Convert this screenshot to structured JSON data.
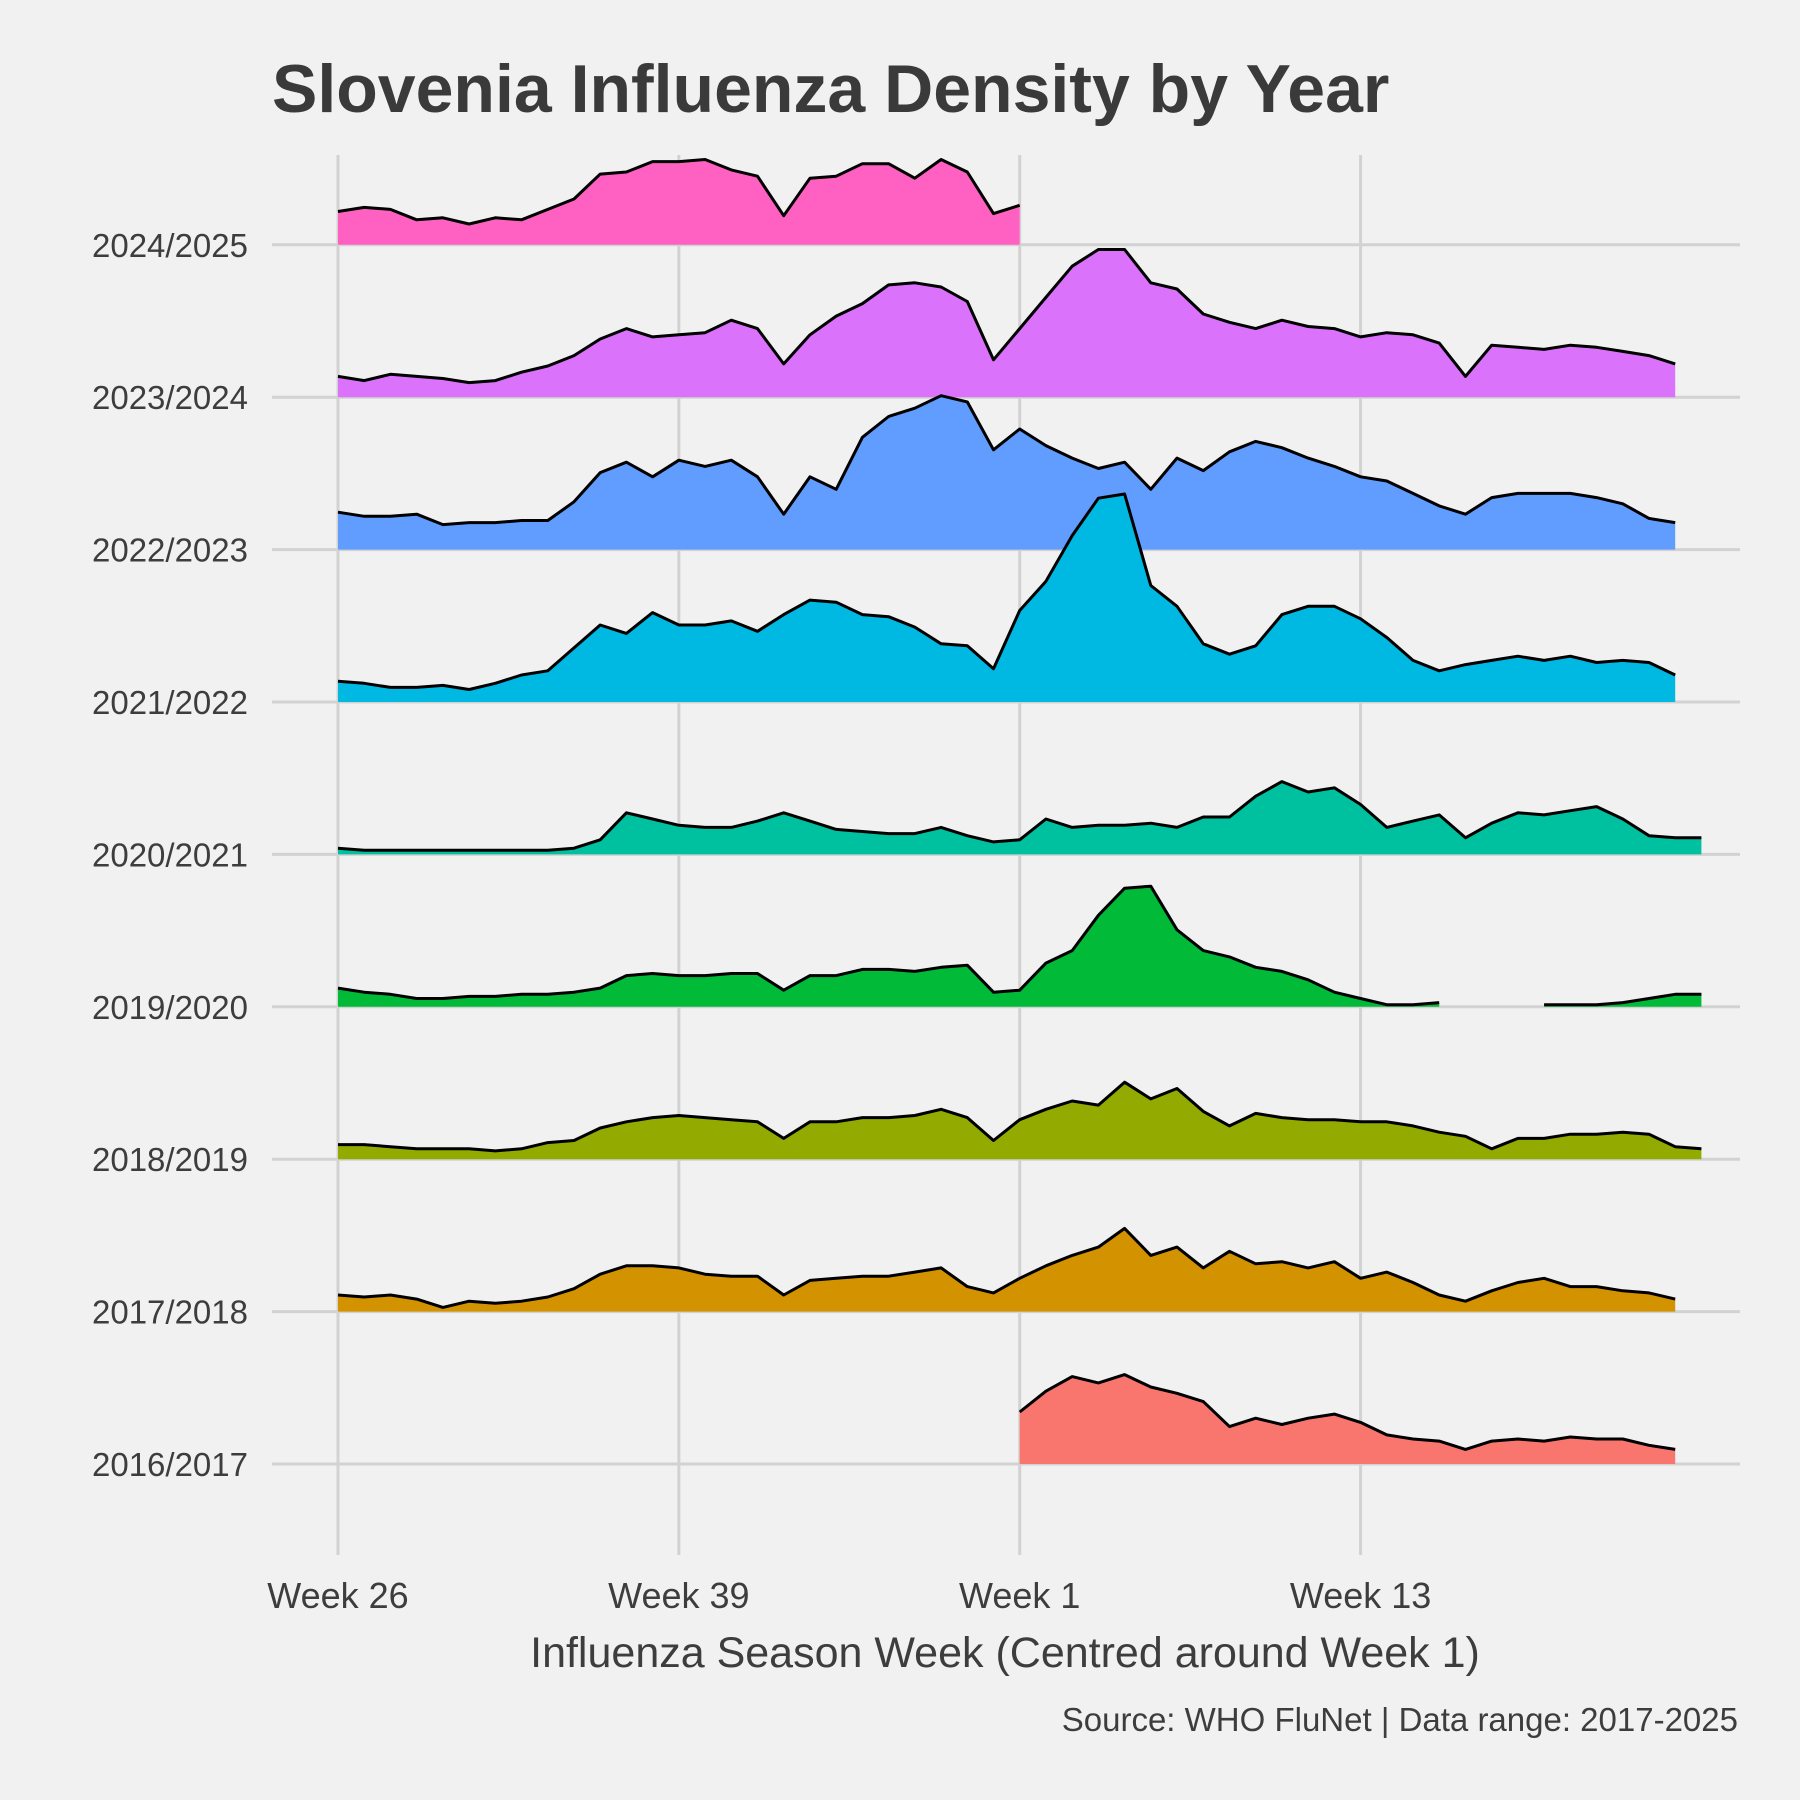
{
  "chart_data": {
    "type": "area",
    "title": "Slovenia Influenza Density by Year",
    "xlabel": "Influenza Season Week (Centred around Week 1)",
    "ylabel": "",
    "caption": "Source: WHO FluNet | Data range: 2017-2025",
    "x_tick_labels": [
      "Week 26",
      "Week 39",
      "Week 1",
      "Week 13"
    ],
    "x_tick_positions": [
      0,
      13,
      26,
      39
    ],
    "x_range": [
      0,
      51
    ],
    "grid": true,
    "legend": "none",
    "series": [
      {
        "name": "2016/2017",
        "color": "#f8766d",
        "values": [
          null,
          null,
          null,
          null,
          null,
          null,
          null,
          null,
          null,
          null,
          null,
          null,
          null,
          null,
          null,
          null,
          null,
          null,
          null,
          null,
          null,
          null,
          null,
          null,
          null,
          null,
          0.25,
          0.35,
          0.42,
          0.39,
          0.43,
          0.37,
          0.34,
          0.3,
          0.18,
          0.22,
          0.19,
          0.22,
          0.24,
          0.2,
          0.14,
          0.12,
          0.11,
          0.07,
          0.11,
          0.12,
          0.11,
          0.13,
          0.12,
          0.12,
          0.09,
          0.07
        ]
      },
      {
        "name": "2017/2018",
        "color": "#d39200",
        "values": [
          0.08,
          0.07,
          0.08,
          0.06,
          0.02,
          0.05,
          0.04,
          0.05,
          0.07,
          0.11,
          0.18,
          0.22,
          0.22,
          0.21,
          0.18,
          0.17,
          0.17,
          0.08,
          0.15,
          0.16,
          0.17,
          0.17,
          0.19,
          0.21,
          0.12,
          0.09,
          0.16,
          0.22,
          0.27,
          0.31,
          0.4,
          0.27,
          0.31,
          0.21,
          0.29,
          0.23,
          0.24,
          0.21,
          0.24,
          0.16,
          0.19,
          0.14,
          0.08,
          0.05,
          0.1,
          0.14,
          0.16,
          0.12,
          0.12,
          0.1,
          0.09,
          0.06
        ]
      },
      {
        "name": "2018/2019",
        "color": "#93aa00",
        "values": [
          0.07,
          0.07,
          0.06,
          0.05,
          0.05,
          0.05,
          0.04,
          0.05,
          0.08,
          0.09,
          0.15,
          0.18,
          0.2,
          0.21,
          0.2,
          0.19,
          0.18,
          0.1,
          0.18,
          0.18,
          0.2,
          0.2,
          0.21,
          0.24,
          0.2,
          0.09,
          0.19,
          0.24,
          0.28,
          0.26,
          0.37,
          0.29,
          0.34,
          0.23,
          0.16,
          0.22,
          0.2,
          0.19,
          0.19,
          0.18,
          0.18,
          0.16,
          0.13,
          0.11,
          0.05,
          0.1,
          0.1,
          0.12,
          0.12,
          0.13,
          0.12,
          0.06,
          0.05
        ]
      },
      {
        "name": "2019/2020",
        "color": "#00ba38",
        "values": [
          0.09,
          0.07,
          0.06,
          0.04,
          0.04,
          0.05,
          0.05,
          0.06,
          0.06,
          0.07,
          0.09,
          0.15,
          0.16,
          0.15,
          0.15,
          0.16,
          0.16,
          0.08,
          0.15,
          0.15,
          0.18,
          0.18,
          0.17,
          0.19,
          0.2,
          0.07,
          0.08,
          0.21,
          0.27,
          0.44,
          0.57,
          0.58,
          0.37,
          0.27,
          0.24,
          0.19,
          0.17,
          0.13,
          0.07,
          0.04,
          0.01,
          0.01,
          0.02,
          null,
          null,
          null,
          0.01,
          0.01,
          0.01,
          0.02,
          0.04,
          0.06,
          0.06
        ]
      },
      {
        "name": "2020/2021",
        "color": "#00c19f",
        "values": [
          0.03,
          0.02,
          0.02,
          0.02,
          0.02,
          0.02,
          0.02,
          0.02,
          0.02,
          0.03,
          0.07,
          0.2,
          0.17,
          0.14,
          0.13,
          0.13,
          0.16,
          0.2,
          0.16,
          0.12,
          0.11,
          0.1,
          0.1,
          0.13,
          0.09,
          0.06,
          0.07,
          0.17,
          0.13,
          0.14,
          0.14,
          0.15,
          0.13,
          0.18,
          0.18,
          0.28,
          0.35,
          0.3,
          0.32,
          0.24,
          0.13,
          0.16,
          0.19,
          0.08,
          0.15,
          0.2,
          0.19,
          0.21,
          0.23,
          0.17,
          0.09,
          0.08,
          0.08
        ]
      },
      {
        "name": "2021/2022",
        "color": "#00b9e3",
        "values": [
          0.1,
          0.09,
          0.07,
          0.07,
          0.08,
          0.06,
          0.09,
          0.13,
          0.15,
          0.26,
          0.37,
          0.33,
          0.43,
          0.37,
          0.37,
          0.39,
          0.34,
          0.42,
          0.49,
          0.48,
          0.42,
          0.41,
          0.36,
          0.28,
          0.27,
          0.16,
          0.44,
          0.58,
          0.8,
          0.98,
          1.0,
          0.56,
          0.46,
          0.28,
          0.23,
          0.27,
          0.42,
          0.46,
          0.46,
          0.4,
          0.31,
          0.2,
          0.15,
          0.18,
          0.2,
          0.22,
          0.2,
          0.22,
          0.19,
          0.2,
          0.19,
          0.13
        ]
      },
      {
        "name": "2022/2023",
        "color": "#619cff",
        "values": [
          0.18,
          0.16,
          0.16,
          0.17,
          0.12,
          0.13,
          0.13,
          0.14,
          0.14,
          0.23,
          0.37,
          0.42,
          0.35,
          0.43,
          0.4,
          0.43,
          0.35,
          0.17,
          0.35,
          0.29,
          0.54,
          0.64,
          0.68,
          0.74,
          0.71,
          0.48,
          0.58,
          0.5,
          0.44,
          0.39,
          0.42,
          0.29,
          0.44,
          0.38,
          0.47,
          0.52,
          0.49,
          0.44,
          0.4,
          0.35,
          0.33,
          0.27,
          0.21,
          0.17,
          0.25,
          0.27,
          0.27,
          0.27,
          0.25,
          0.22,
          0.15,
          0.13
        ]
      },
      {
        "name": "2023/2024",
        "color": "#db72fb",
        "values": [
          0.1,
          0.08,
          0.11,
          0.1,
          0.09,
          0.07,
          0.08,
          0.12,
          0.15,
          0.2,
          0.28,
          0.33,
          0.29,
          0.3,
          0.31,
          0.37,
          0.33,
          0.16,
          0.3,
          0.39,
          0.45,
          0.54,
          0.55,
          0.53,
          0.46,
          0.18,
          0.33,
          0.48,
          0.63,
          0.71,
          0.71,
          0.55,
          0.52,
          0.4,
          0.36,
          0.33,
          0.37,
          0.34,
          0.33,
          0.29,
          0.31,
          0.3,
          0.26,
          0.1,
          0.25,
          0.24,
          0.23,
          0.25,
          0.24,
          0.22,
          0.2,
          0.16
        ]
      },
      {
        "name": "2024/2025",
        "color": "#ff61c3",
        "values": [
          0.16,
          0.18,
          0.17,
          0.12,
          0.13,
          0.1,
          0.13,
          0.12,
          0.17,
          0.22,
          0.34,
          0.35,
          0.4,
          0.4,
          0.41,
          0.36,
          0.33,
          0.14,
          0.32,
          0.33,
          0.39,
          0.39,
          0.32,
          0.41,
          0.35,
          0.15,
          0.19
        ]
      }
    ]
  }
}
